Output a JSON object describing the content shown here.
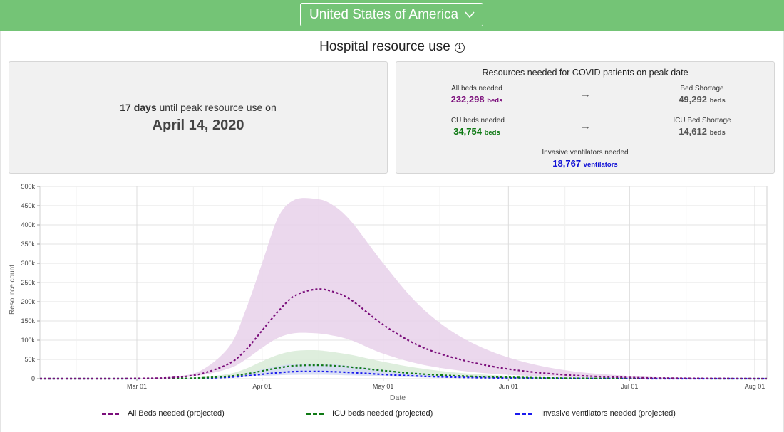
{
  "header": {
    "country": "United States of America",
    "chevron_icon": "chevron-down-icon",
    "bar_color": "#74c476"
  },
  "title": "Hospital resource use",
  "info_icon": "info-icon",
  "peak": {
    "days": "17 days",
    "text": "until peak resource use on",
    "date": "April 14, 2020"
  },
  "resources": {
    "title": "Resources needed for COVID patients on peak date",
    "all_beds": {
      "label": "All beds needed",
      "value": "232,298",
      "unit": "beds"
    },
    "bed_shortage": {
      "label": "Bed Shortage",
      "value": "49,292",
      "unit": "beds"
    },
    "icu_beds": {
      "label": "ICU beds needed",
      "value": "34,754",
      "unit": "beds"
    },
    "icu_shortage": {
      "label": "ICU Bed Shortage",
      "value": "14,612",
      "unit": "beds"
    },
    "ventilators": {
      "label": "Invasive ventilators needed",
      "value": "18,767",
      "unit": "ventilators"
    },
    "arrow": "→"
  },
  "legend": {
    "all_beds": "All Beds needed (projected)",
    "icu_beds": "ICU beds needed (projected)",
    "ventilators": "Invasive ventilators needed (projected)"
  },
  "chart_data": {
    "type": "area",
    "xlabel": "Date",
    "ylabel": "Resource count",
    "x_ticks": [
      "Mar 01",
      "Apr 01",
      "May 01",
      "Jun 01",
      "Jul 01",
      "Aug 01"
    ],
    "y_ticks": [
      "0",
      "50k",
      "100k",
      "150k",
      "200k",
      "250k",
      "300k",
      "350k",
      "400k",
      "450k",
      "500k"
    ],
    "ylim": [
      0,
      500000
    ],
    "xlim": [
      "2020-02-06",
      "2020-08-04"
    ],
    "grid": true,
    "legend_position": "bottom",
    "x": [
      "2020-02-06",
      "2020-02-20",
      "2020-03-01",
      "2020-03-10",
      "2020-03-17",
      "2020-03-24",
      "2020-03-28",
      "2020-04-01",
      "2020-04-05",
      "2020-04-09",
      "2020-04-14",
      "2020-04-18",
      "2020-04-23",
      "2020-05-01",
      "2020-05-10",
      "2020-05-20",
      "2020-06-01",
      "2020-06-15",
      "2020-07-01",
      "2020-07-15",
      "2020-08-04"
    ],
    "series": [
      {
        "name": "All Beds needed (projected)",
        "color": "#7b0e7b",
        "values": [
          0,
          0,
          500,
          3000,
          13000,
          40000,
          75000,
          125000,
          175000,
          215000,
          232000,
          228000,
          205000,
          140000,
          85000,
          50000,
          25000,
          10000,
          3000,
          1000,
          0
        ],
        "lower": [
          0,
          0,
          300,
          2000,
          9000,
          27000,
          50000,
          80000,
          106000,
          118000,
          118000,
          113000,
          100000,
          65000,
          38000,
          21000,
          10000,
          4000,
          1000,
          300,
          0
        ],
        "upper": [
          0,
          0,
          800,
          5000,
          22000,
          85000,
          180000,
          300000,
          420000,
          465000,
          468000,
          455000,
          410000,
          300000,
          190000,
          110000,
          55000,
          22000,
          7000,
          2000,
          0
        ],
        "band_color": "#e8d1ea"
      },
      {
        "name": "ICU beds needed (projected)",
        "color": "#0f7a14",
        "values": [
          0,
          0,
          100,
          500,
          2000,
          6500,
          12000,
          20000,
          28000,
          33500,
          35000,
          34000,
          30000,
          21000,
          12500,
          7000,
          3500,
          1300,
          400,
          100,
          0
        ],
        "lower": [
          0,
          0,
          50,
          300,
          1200,
          4000,
          7000,
          11000,
          14500,
          16500,
          17000,
          16000,
          14000,
          9500,
          5500,
          3000,
          1500,
          600,
          200,
          50,
          0
        ],
        "upper": [
          0,
          0,
          200,
          900,
          4000,
          13000,
          26000,
          45000,
          62000,
          72000,
          74000,
          70000,
          62000,
          44000,
          27000,
          15000,
          7000,
          2700,
          900,
          300,
          0
        ],
        "band_color": "#d8ebd7"
      },
      {
        "name": "Invasive ventilators needed (projected)",
        "color": "#1a1aee",
        "values": [
          0,
          0,
          50,
          300,
          1200,
          3800,
          7000,
          11500,
          15500,
          18300,
          18800,
          18200,
          16000,
          11000,
          6500,
          3600,
          1800,
          700,
          200,
          50,
          0
        ],
        "lower": [
          0,
          0,
          30,
          200,
          800,
          2400,
          4300,
          6800,
          8800,
          10000,
          10200,
          9800,
          8500,
          5800,
          3300,
          1800,
          900,
          350,
          100,
          30,
          0
        ],
        "upper": [
          0,
          0,
          100,
          500,
          2200,
          7500,
          14000,
          24000,
          33000,
          38000,
          39000,
          37500,
          33000,
          23000,
          14000,
          7800,
          3800,
          1500,
          450,
          120,
          0
        ],
        "band_color": "#d5daf5"
      }
    ]
  }
}
